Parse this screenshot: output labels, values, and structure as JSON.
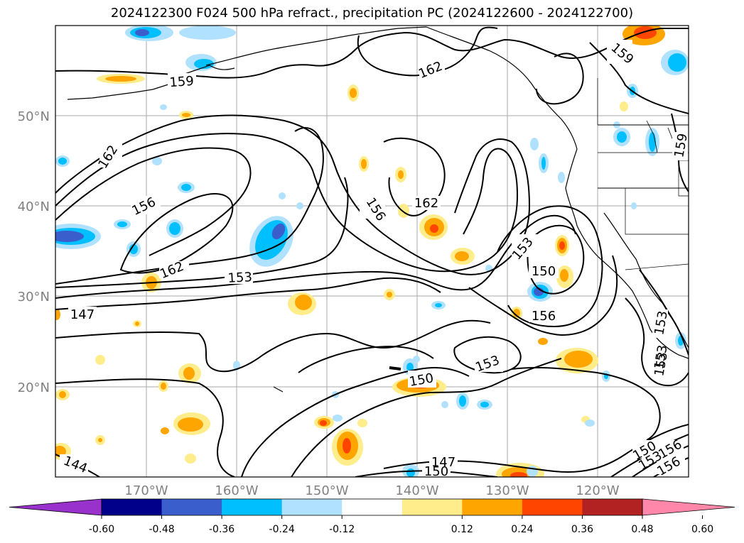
{
  "title": "2024122300 F024 500 hPa refract., precipitation PC (2024122600 - 2024122700)",
  "lat_labels": [
    "50°N",
    "40°N",
    "30°N",
    "20°N"
  ],
  "lon_labels": [
    "170°W",
    "160°W",
    "150°W",
    "140°W",
    "130°W",
    "120°W"
  ],
  "contour_labels": [
    "159",
    "159",
    "162",
    "162",
    "156",
    "162",
    "156",
    "153",
    "153",
    "162",
    "147",
    "153",
    "150",
    "156",
    "153",
    "150",
    "147",
    "150",
    "144",
    "150",
    "153",
    "156",
    "156",
    "159",
    "153",
    "153"
  ],
  "colorbar": {
    "colors": [
      "#9932cc",
      "#00008b",
      "#3a5fcd",
      "#00bfff",
      "#b0e2ff",
      "#ffffff",
      "#ffec8b",
      "#ffa500",
      "#ff4500",
      "#b22222",
      "#ff88aa"
    ],
    "labels": [
      "-0.60",
      "-0.48",
      "-0.36",
      "-0.24",
      "-0.12",
      "0.12",
      "0.24",
      "0.36",
      "0.48",
      "0.60"
    ]
  }
}
